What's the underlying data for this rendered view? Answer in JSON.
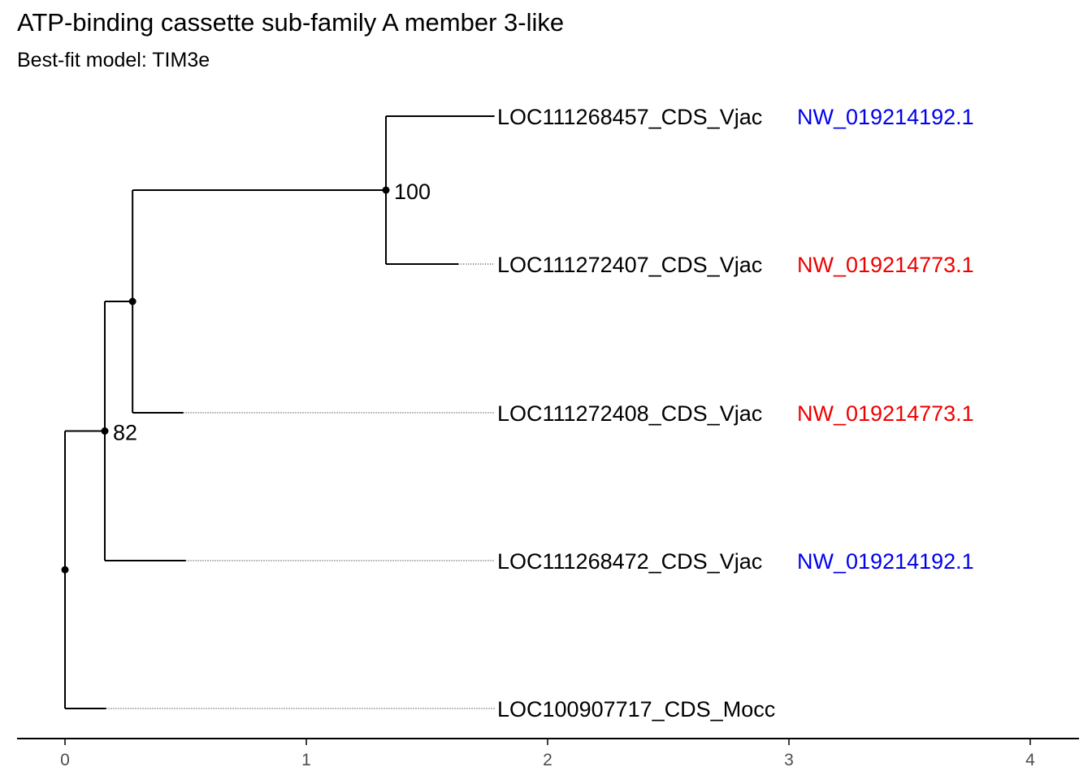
{
  "title": "ATP-binding cassette sub-family A member 3-like",
  "subtitle": "Best-fit model: TIM3e",
  "colors": {
    "contig_blue": "#0000ee",
    "contig_red": "#ee0000",
    "branch": "#000000",
    "axis_text": "#4d4d4d"
  },
  "tree": {
    "tips": [
      {
        "label": "LOC111268457_CDS_Vjac",
        "contig": "NW_019214192.1",
        "contig_color": "blue",
        "branch_end": 1.78
      },
      {
        "label": "LOC111272407_CDS_Vjac",
        "contig": "NW_019214773.1",
        "contig_color": "red",
        "branch_end": 1.63
      },
      {
        "label": "LOC111272408_CDS_Vjac",
        "contig": "NW_019214773.1",
        "contig_color": "red",
        "branch_end": 0.49
      },
      {
        "label": "LOC111268472_CDS_Vjac",
        "contig": "NW_019214192.1",
        "contig_color": "blue",
        "branch_end": 0.5
      },
      {
        "label": "LOC100907717_CDS_Mocc",
        "contig": "",
        "contig_color": "",
        "branch_end": 0.17
      }
    ],
    "nodes": [
      {
        "id": "root",
        "x": 0.0,
        "children": [
          "n82",
          "t4"
        ],
        "support": ""
      },
      {
        "id": "n82",
        "x": 0.165,
        "children": [
          "n_inner",
          "t3"
        ],
        "support": "82"
      },
      {
        "id": "n_inner",
        "x": 0.28,
        "children": [
          "n100",
          "t2"
        ],
        "support": ""
      },
      {
        "id": "n100",
        "x": 1.33,
        "children": [
          "t0",
          "t1"
        ],
        "support": "100"
      }
    ]
  },
  "axis": {
    "ticks": [
      "0",
      "1",
      "2",
      "3",
      "4"
    ],
    "range": [
      -0.2,
      4.2
    ]
  }
}
